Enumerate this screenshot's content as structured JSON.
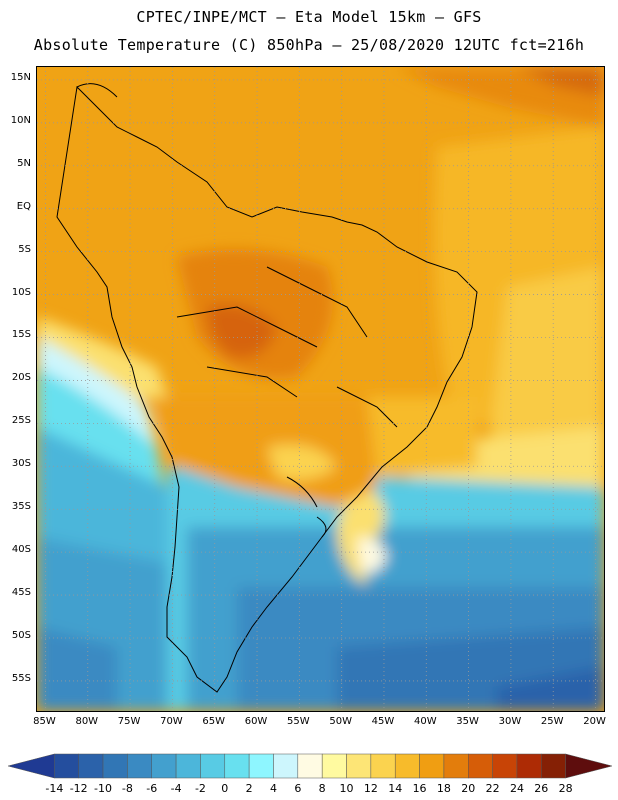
{
  "title_line1": "CPTEC/INPE/MCT –  Eta Model 15km – GFS",
  "title_line2": "Absolute Temperature (C) 850hPa – 25/08/2020 12UTC fct=216h",
  "map": {
    "variable": "Absolute Temperature (C)",
    "level": "850hPa",
    "lat_ticks": [
      "15N",
      "10N",
      "5N",
      "EQ",
      "5S",
      "10S",
      "15S",
      "20S",
      "25S",
      "30S",
      "35S",
      "40S",
      "45S",
      "50S",
      "55S"
    ],
    "lon_ticks": [
      "85W",
      "80W",
      "75W",
      "70W",
      "65W",
      "60W",
      "55W",
      "50W",
      "45W",
      "40W",
      "35W",
      "30W",
      "25W",
      "20W"
    ],
    "lon_range": [
      -86,
      -19
    ],
    "lat_range": [
      16.5,
      -58.5
    ]
  },
  "colorbar": {
    "labels": [
      "-14",
      "-12",
      "-10",
      "-8",
      "-6",
      "-4",
      "-2",
      "0",
      "2",
      "4",
      "6",
      "8",
      "10",
      "12",
      "14",
      "16",
      "18",
      "20",
      "22",
      "24",
      "26",
      "28"
    ],
    "colors": [
      "#1f3a93",
      "#244e9e",
      "#2b62aa",
      "#3176b5",
      "#3a8ac2",
      "#43a0ce",
      "#4cb6da",
      "#58cbe4",
      "#68e0ef",
      "#8ef6ff",
      "#cdf6fd",
      "#fffbe3",
      "#fffaa0",
      "#fde576",
      "#fbd34f",
      "#f7bb2b",
      "#f09e12",
      "#e37d0c",
      "#d65d08",
      "#c84406",
      "#ad2b05",
      "#852005",
      "#5e0d0d"
    ]
  }
}
